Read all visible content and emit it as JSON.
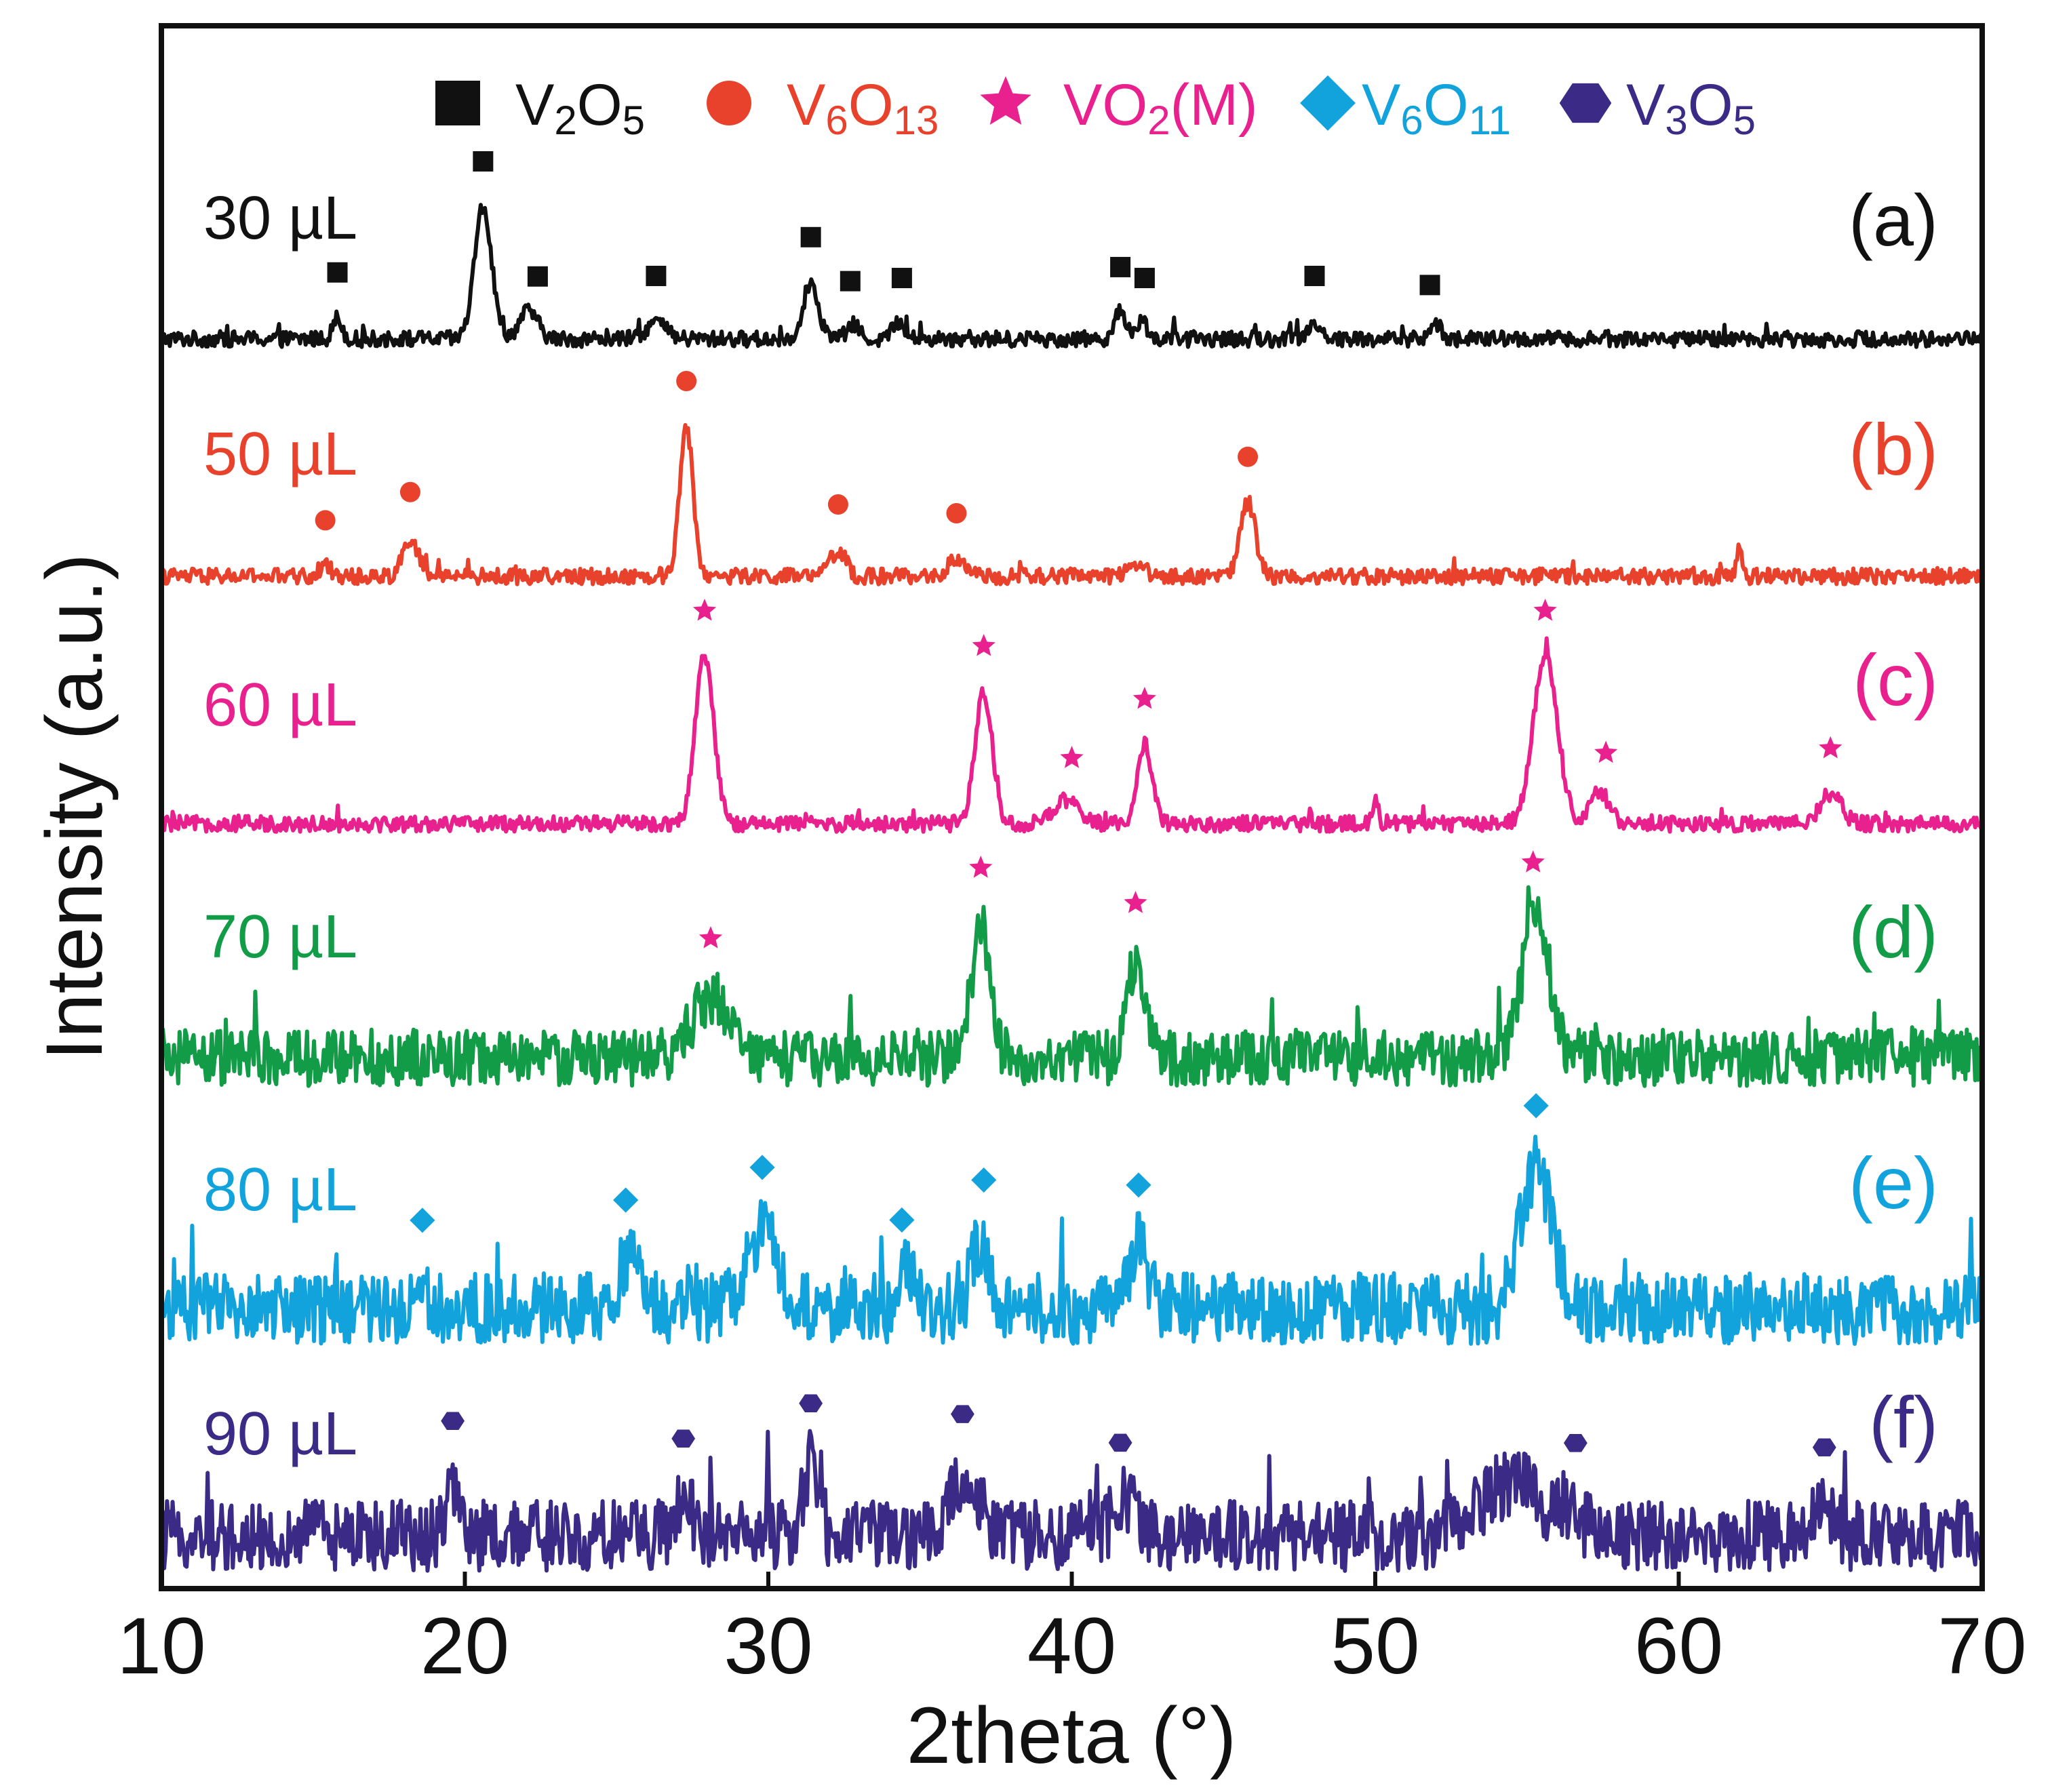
{
  "chart_data": {
    "type": "line",
    "title": "",
    "xlabel": "2theta (°)",
    "ylabel": "Intensity (a.u.)",
    "xlim": [
      10,
      70
    ],
    "x_ticks": [
      "10",
      "20",
      "30",
      "40",
      "50",
      "60",
      "70"
    ],
    "grid": false,
    "legend": {
      "placement": "top",
      "entries": [
        {
          "label": "V2O5",
          "base": "V",
          "sub1": "2",
          "mid": "O",
          "sub2": "5",
          "tail": "",
          "marker": "square",
          "color": "#111111"
        },
        {
          "label": "V6O13",
          "base": "V",
          "sub1": "6",
          "mid": "O",
          "sub2": "13",
          "tail": "",
          "marker": "circle",
          "color": "#e8412c"
        },
        {
          "label": "VO2(M)",
          "base": "VO",
          "sub1": "2",
          "mid": "",
          "sub2": "",
          "tail": "(M)",
          "marker": "star",
          "color": "#e8218e"
        },
        {
          "label": "V6O11",
          "base": "V",
          "sub1": "6",
          "mid": "O",
          "sub2": "11",
          "tail": "",
          "marker": "diamond",
          "color": "#12a3dc"
        },
        {
          "label": "V3O5",
          "base": "V",
          "sub1": "3",
          "mid": "O",
          "sub2": "5",
          "tail": "",
          "marker": "hexagon",
          "color": "#3b2a86"
        }
      ]
    },
    "series": [
      {
        "name": "30 µL",
        "panel": "(a)",
        "color": "#111111",
        "noise": 0.045,
        "peaks": [
          [
            15.8,
            0.12,
            0.15
          ],
          [
            20.6,
            0.75,
            0.28
          ],
          [
            22.1,
            0.16,
            0.3
          ],
          [
            26.3,
            0.1,
            0.3
          ],
          [
            31.4,
            0.32,
            0.25
          ],
          [
            32.8,
            0.08,
            0.2
          ],
          [
            34.3,
            0.1,
            0.2
          ],
          [
            41.6,
            0.15,
            0.2
          ],
          [
            42.3,
            0.1,
            0.2
          ],
          [
            48.0,
            0.1,
            0.2
          ],
          [
            52.0,
            0.08,
            0.2
          ]
        ],
        "markers": {
          "type": "square",
          "color": "#111111",
          "x": [
            15.8,
            20.6,
            22.4,
            26.3,
            31.4,
            32.7,
            34.4,
            41.6,
            42.4,
            48.0,
            51.8
          ]
        }
      },
      {
        "name": "50 µL",
        "panel": "(b)",
        "color": "#e8412c",
        "noise": 0.045,
        "peaks": [
          [
            15.4,
            0.06,
            0.2
          ],
          [
            18.2,
            0.22,
            0.25
          ],
          [
            27.3,
            0.85,
            0.22
          ],
          [
            32.3,
            0.15,
            0.25
          ],
          [
            36.2,
            0.1,
            0.25
          ],
          [
            42.1,
            0.07,
            0.3
          ],
          [
            45.8,
            0.42,
            0.25
          ],
          [
            62.0,
            0.15,
            0.1
          ]
        ],
        "markers": {
          "type": "circle",
          "color": "#e8412c",
          "x": [
            15.4,
            18.2,
            27.3,
            32.3,
            36.2,
            45.8
          ]
        }
      },
      {
        "name": "60 µL",
        "panel": "(c)",
        "color": "#e8218e",
        "noise": 0.045,
        "peaks": [
          [
            27.9,
            0.95,
            0.3
          ],
          [
            37.1,
            0.75,
            0.28
          ],
          [
            39.8,
            0.13,
            0.4
          ],
          [
            42.4,
            0.45,
            0.25
          ],
          [
            55.6,
            0.95,
            0.4
          ],
          [
            57.4,
            0.18,
            0.3
          ],
          [
            65.0,
            0.17,
            0.35
          ],
          [
            50.0,
            0.12,
            0.1
          ]
        ],
        "markers": {
          "type": "star",
          "color": "#e8218e",
          "x": [
            27.9,
            37.1,
            40.0,
            42.4,
            55.6,
            57.6,
            65.0
          ]
        }
      },
      {
        "name": "70 µL",
        "panel": "(d)",
        "color": "#139c48",
        "noise": 0.16,
        "peaks": [
          [
            28.1,
            0.35,
            0.6
          ],
          [
            37.0,
            0.75,
            0.3
          ],
          [
            42.1,
            0.55,
            0.3
          ],
          [
            55.3,
            0.8,
            0.45
          ]
        ],
        "markers": {
          "type": "star",
          "color": "#e8218e",
          "x": [
            28.1,
            37.0,
            42.1,
            55.2
          ]
        }
      },
      {
        "name": "80 µL",
        "panel": "(e)",
        "color": "#12a3dc",
        "noise": 0.2,
        "peaks": [
          [
            18.6,
            0.15,
            0.2
          ],
          [
            25.5,
            0.3,
            0.4
          ],
          [
            29.8,
            0.45,
            0.5
          ],
          [
            34.6,
            0.25,
            0.2
          ],
          [
            37.0,
            0.4,
            0.3
          ],
          [
            42.2,
            0.35,
            0.3
          ],
          [
            55.3,
            0.8,
            0.5
          ]
        ],
        "markers": {
          "type": "diamond",
          "color": "#12a3dc",
          "x": [
            18.6,
            25.3,
            29.8,
            34.4,
            37.1,
            42.2,
            55.3
          ]
        }
      },
      {
        "name": "90 µL",
        "panel": "(f)",
        "color": "#3b2a86",
        "noise": 0.2,
        "peaks": [
          [
            19.6,
            0.3,
            0.2
          ],
          [
            27.2,
            0.2,
            0.3
          ],
          [
            31.4,
            0.4,
            0.25
          ],
          [
            36.5,
            0.35,
            0.4
          ],
          [
            41.8,
            0.2,
            0.4
          ],
          [
            54.5,
            0.3,
            1.0
          ],
          [
            56.5,
            0.15,
            0.3
          ],
          [
            64.8,
            0.15,
            0.3
          ]
        ],
        "markers": {
          "type": "hexagon",
          "color": "#3b2a86",
          "x": [
            19.6,
            27.2,
            31.4,
            36.4,
            41.6,
            56.6,
            64.8
          ]
        }
      }
    ]
  }
}
